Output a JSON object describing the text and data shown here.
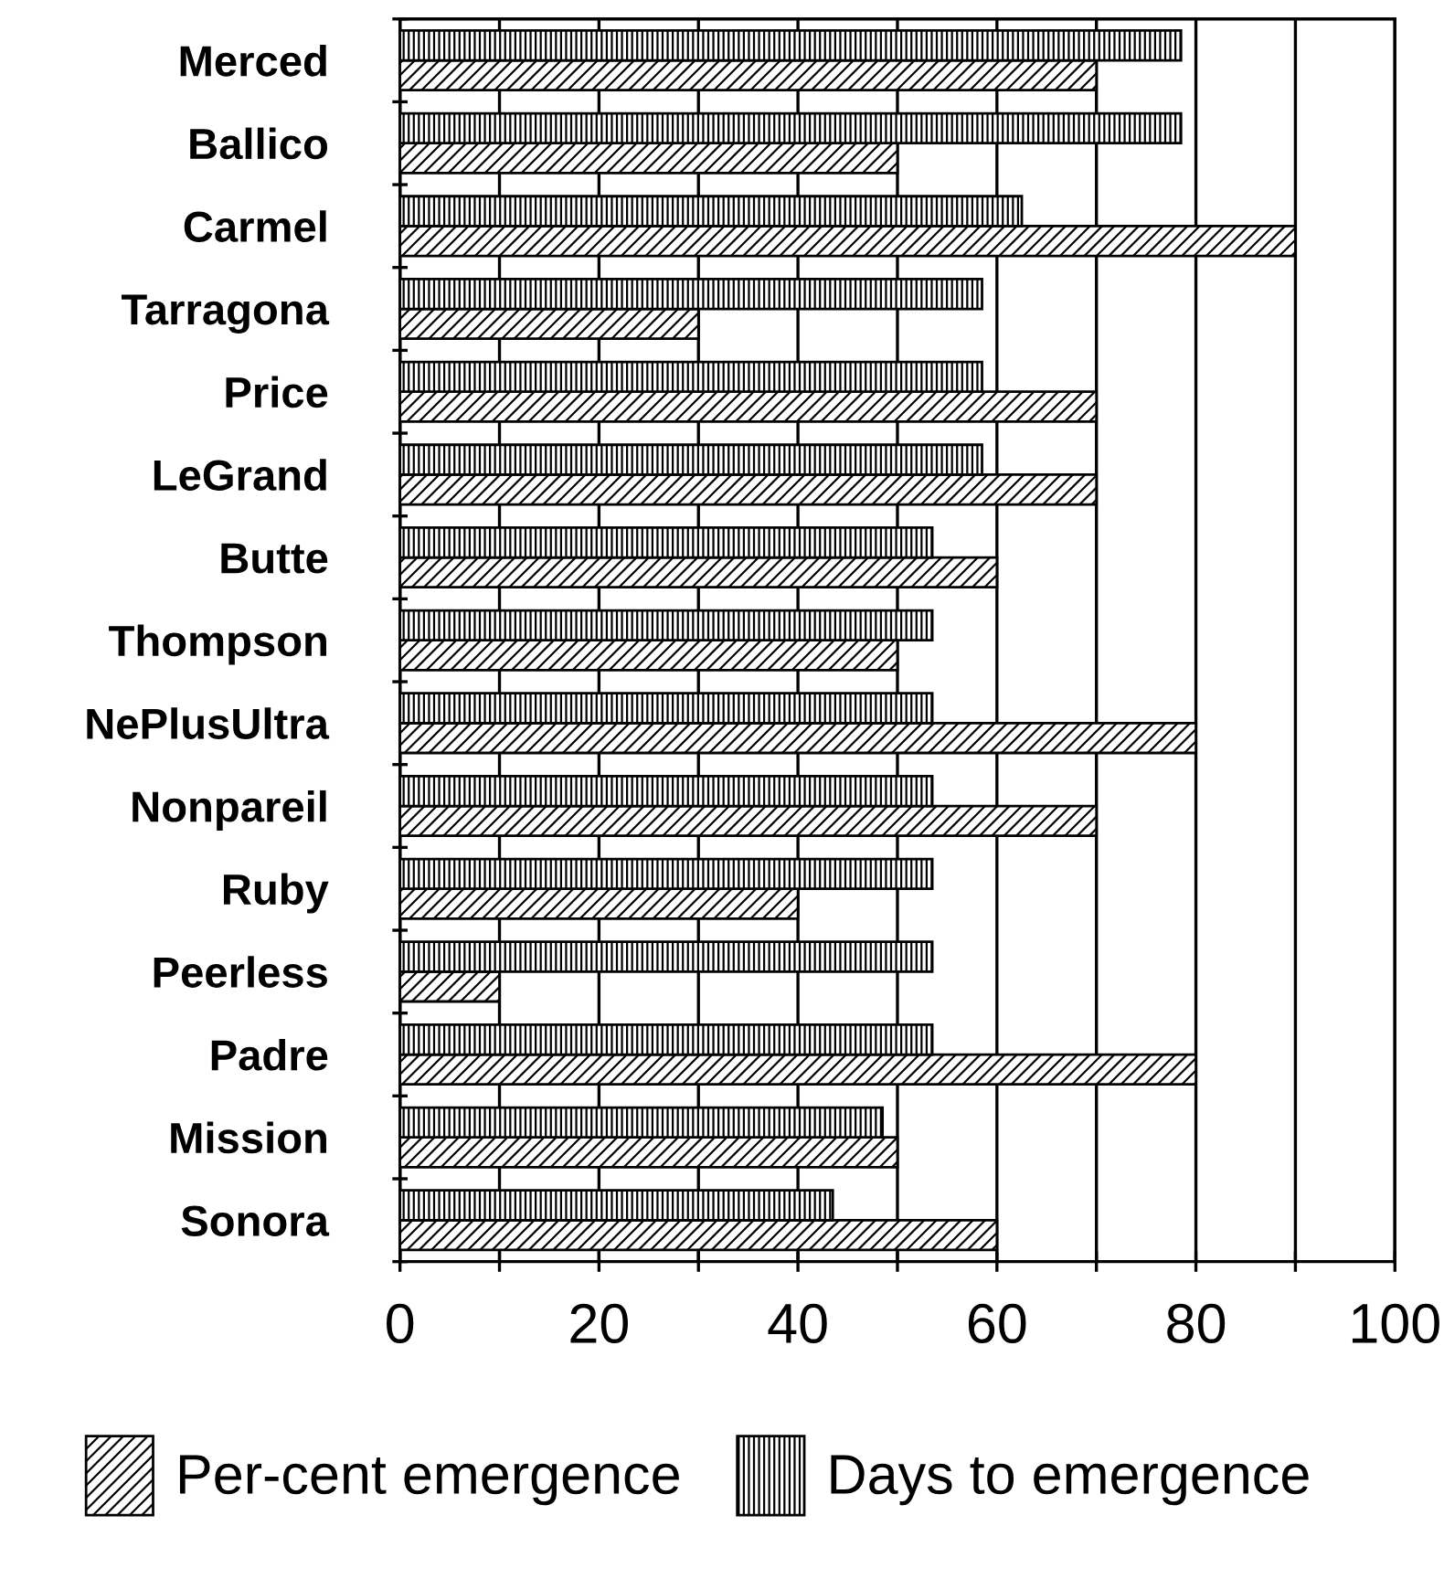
{
  "chart_data": {
    "type": "bar",
    "orientation": "horizontal",
    "categories": [
      "Merced",
      "Ballico",
      "Carmel",
      "Tarragona",
      "Price",
      "LeGrand",
      "Butte",
      "Thompson",
      "NePlusUltra",
      "Nonpareil",
      "Ruby",
      "Peerless",
      "Padre",
      "Mission",
      "Sonora"
    ],
    "series": [
      {
        "name": "Per-cent emergence",
        "color": "#000000",
        "values": [
          70,
          50,
          90,
          30,
          70,
          70,
          60,
          50,
          80,
          70,
          40,
          10,
          80,
          50,
          60
        ]
      },
      {
        "name": "Days to emergence",
        "color": "#000000",
        "values": [
          78.5,
          78.5,
          62.5,
          58.5,
          58.5,
          58.5,
          53.5,
          53.5,
          53.5,
          53.5,
          53.5,
          53.5,
          53.5,
          48.5,
          43.5
        ]
      }
    ],
    "xlim": [
      0,
      100
    ],
    "xticks": [
      0,
      {
        "value": 10,
        "label": null
      },
      20,
      {
        "value": 30,
        "label": null
      },
      40,
      {
        "value": 50,
        "label": null
      },
      60,
      {
        "value": 70,
        "label": null
      },
      80,
      {
        "value": 90,
        "label": null
      },
      100
    ],
    "grid": "x",
    "legend": "bottom"
  }
}
